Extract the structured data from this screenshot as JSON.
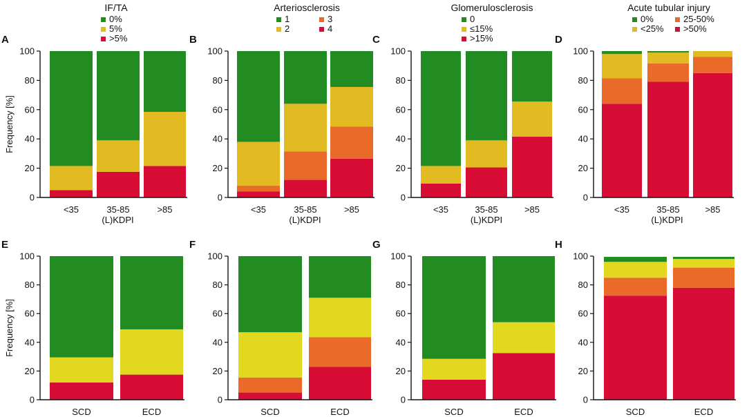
{
  "y_axis_label": "Frequency [%]",
  "colors": {
    "green": "#228B22",
    "yellow_top": "#E2BB22",
    "yellow_bottom": "#E3D820",
    "orange": "#EA6A2A",
    "red": "#D80D36"
  },
  "chart_data": [
    {
      "panel": "A",
      "type": "bar",
      "stacked": true,
      "title": "IF/TA",
      "categories": [
        "<35",
        "35-85",
        ">85"
      ],
      "xlabel": "(L)KDPI",
      "ylabel": "Frequency [%]",
      "ylim": [
        0,
        100
      ],
      "yticks": [
        0,
        20,
        40,
        60,
        80,
        100
      ],
      "series": [
        {
          "name": ">5%",
          "color": "#D80D36",
          "values": [
            5,
            17.5,
            21.5
          ]
        },
        {
          "name": "5%",
          "color": "#E2BB22",
          "values": [
            16.5,
            21.5,
            37
          ]
        },
        {
          "name": "0%",
          "color": "#228B22",
          "values": [
            78.5,
            61,
            41.5
          ]
        }
      ],
      "legend": [
        {
          "label": "0%",
          "color": "#228B22"
        },
        {
          "label": "5%",
          "color": "#E2BB22"
        },
        {
          "label": ">5%",
          "color": "#D80D36"
        }
      ]
    },
    {
      "panel": "B",
      "type": "bar",
      "stacked": true,
      "title": "Arteriosclerosis",
      "categories": [
        "<35",
        "35-85",
        ">85"
      ],
      "xlabel": "(L)KDPI",
      "ylabel": "",
      "ylim": [
        0,
        100
      ],
      "yticks": [
        0,
        20,
        40,
        60,
        80,
        100
      ],
      "series": [
        {
          "name": "4",
          "color": "#D80D36",
          "values": [
            4,
            12,
            26.5
          ]
        },
        {
          "name": "3",
          "color": "#EA6A2A",
          "values": [
            4,
            19.5,
            22
          ]
        },
        {
          "name": "2",
          "color": "#E2BB22",
          "values": [
            30,
            32.5,
            27
          ]
        },
        {
          "name": "1",
          "color": "#228B22",
          "values": [
            62,
            36,
            24.5
          ]
        }
      ],
      "legend": [
        {
          "label": "1",
          "color": "#228B22"
        },
        {
          "label": "3",
          "color": "#EA6A2A"
        },
        {
          "label": "2",
          "color": "#E2BB22"
        },
        {
          "label": "4",
          "color": "#D80D36"
        }
      ]
    },
    {
      "panel": "C",
      "type": "bar",
      "stacked": true,
      "title": "Glomerulosclerosis",
      "categories": [
        "<35",
        "35-85",
        ">85"
      ],
      "xlabel": "(L)KDPI",
      "ylabel": "",
      "ylim": [
        0,
        100
      ],
      "yticks": [
        0,
        20,
        40,
        60,
        80,
        100
      ],
      "series": [
        {
          "name": ">15%",
          "color": "#D80D36",
          "values": [
            9.5,
            20.5,
            41.5
          ]
        },
        {
          "name": "≤15%",
          "color": "#E2BB22",
          "values": [
            12,
            18.5,
            24
          ]
        },
        {
          "name": "0",
          "color": "#228B22",
          "values": [
            78.5,
            61,
            34.5
          ]
        }
      ],
      "legend": [
        {
          "label": "0",
          "color": "#228B22"
        },
        {
          "label": "≤15%",
          "color": "#E2BB22"
        },
        {
          "label": ">15%",
          "color": "#D80D36"
        }
      ]
    },
    {
      "panel": "D",
      "type": "bar",
      "stacked": true,
      "title": "Acute tubular injury",
      "categories": [
        "<35",
        "35-85",
        ">85"
      ],
      "xlabel": "(L)KDPI",
      "ylabel": "",
      "ylim": [
        0,
        100
      ],
      "yticks": [
        0,
        20,
        40,
        60,
        80,
        100
      ],
      "series": [
        {
          "name": ">50%",
          "color": "#D80D36",
          "values": [
            64,
            79,
            85
          ]
        },
        {
          "name": "25-50%",
          "color": "#EA6A2A",
          "values": [
            17.5,
            12.5,
            11
          ]
        },
        {
          "name": "<25%",
          "color": "#E2BB22",
          "values": [
            16.5,
            7.5,
            4
          ]
        },
        {
          "name": "0%",
          "color": "#228B22",
          "values": [
            2,
            1,
            0
          ]
        }
      ],
      "legend": [
        {
          "label": "0%",
          "color": "#228B22"
        },
        {
          "label": "25-50%",
          "color": "#EA6A2A"
        },
        {
          "label": "<25%",
          "color": "#E2BB22"
        },
        {
          "label": ">50%",
          "color": "#D80D36"
        }
      ]
    },
    {
      "panel": "E",
      "type": "bar",
      "stacked": true,
      "title": "",
      "categories": [
        "SCD",
        "ECD"
      ],
      "xlabel": "",
      "ylabel": "Frequency [%]",
      "ylim": [
        0,
        100
      ],
      "yticks": [
        0,
        20,
        40,
        60,
        80,
        100
      ],
      "series": [
        {
          "name": ">5%",
          "color": "#D80D36",
          "values": [
            12,
            17.5
          ]
        },
        {
          "name": "5%",
          "color": "#E3D820",
          "values": [
            17.5,
            31.5
          ]
        },
        {
          "name": "0%",
          "color": "#228B22",
          "values": [
            70.5,
            51
          ]
        }
      ]
    },
    {
      "panel": "F",
      "type": "bar",
      "stacked": true,
      "title": "",
      "categories": [
        "SCD",
        "ECD"
      ],
      "xlabel": "",
      "ylabel": "",
      "ylim": [
        0,
        100
      ],
      "yticks": [
        0,
        20,
        40,
        60,
        80,
        100
      ],
      "series": [
        {
          "name": "4",
          "color": "#D80D36",
          "values": [
            5,
            23
          ]
        },
        {
          "name": "3",
          "color": "#EA6A2A",
          "values": [
            10.5,
            20.5
          ]
        },
        {
          "name": "2",
          "color": "#E3D820",
          "values": [
            31.5,
            27.5
          ]
        },
        {
          "name": "1",
          "color": "#228B22",
          "values": [
            53,
            29
          ]
        }
      ]
    },
    {
      "panel": "G",
      "type": "bar",
      "stacked": true,
      "title": "",
      "categories": [
        "SCD",
        "ECD"
      ],
      "xlabel": "",
      "ylabel": "",
      "ylim": [
        0,
        100
      ],
      "yticks": [
        0,
        20,
        40,
        60,
        80,
        100
      ],
      "series": [
        {
          "name": ">15%",
          "color": "#D80D36",
          "values": [
            14,
            32.5
          ]
        },
        {
          "name": "≤15%",
          "color": "#E3D820",
          "values": [
            14.5,
            21.5
          ]
        },
        {
          "name": "0",
          "color": "#228B22",
          "values": [
            71.5,
            46
          ]
        }
      ]
    },
    {
      "panel": "H",
      "type": "bar",
      "stacked": true,
      "title": "",
      "categories": [
        "SCD",
        "ECD"
      ],
      "xlabel": "",
      "ylabel": "",
      "ylim": [
        0,
        100
      ],
      "yticks": [
        0,
        20,
        40,
        60,
        80,
        100
      ],
      "series": [
        {
          "name": ">50%",
          "color": "#D80D36",
          "values": [
            72.5,
            78
          ]
        },
        {
          "name": "25-50%",
          "color": "#EA6A2A",
          "values": [
            12.5,
            14
          ]
        },
        {
          "name": "<25%",
          "color": "#E3D820",
          "values": [
            11,
            6
          ]
        },
        {
          "name": "0%",
          "color": "#228B22",
          "values": [
            3.5,
            1.5
          ]
        }
      ]
    }
  ]
}
